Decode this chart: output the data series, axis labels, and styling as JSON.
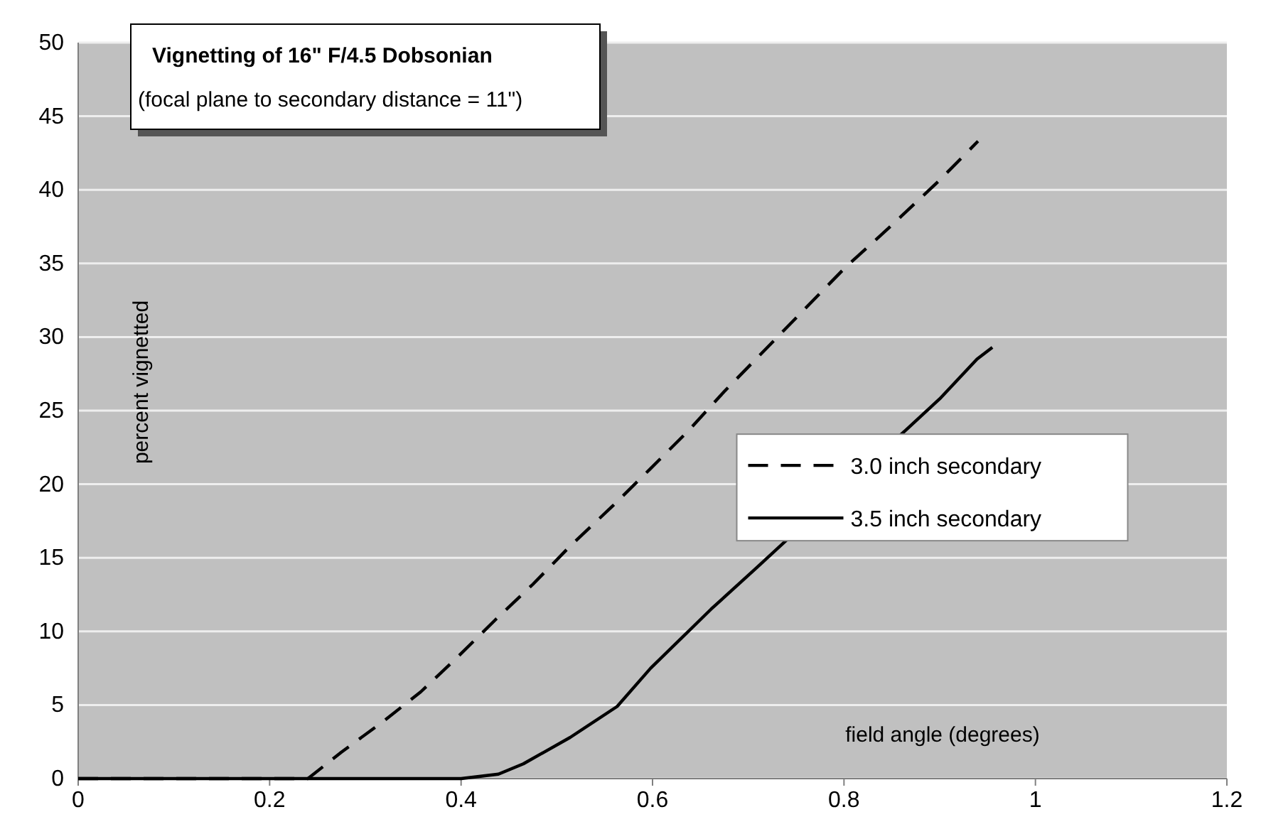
{
  "chart_data": {
    "type": "line",
    "title": "Vignetting of 16\" F/4.5 Dobsonian",
    "subtitle": "(focal plane to secondary distance = 11\")",
    "xlabel": "field angle (degrees)",
    "ylabel": "percent vignetted",
    "xlim": [
      0,
      1.2
    ],
    "xticks": [
      0,
      0.2,
      0.4,
      0.6,
      0.8,
      1,
      1.2
    ],
    "ylim": [
      0,
      50
    ],
    "yticks": [
      0,
      5,
      10,
      15,
      20,
      25,
      30,
      35,
      40,
      45,
      50
    ],
    "grid": "y",
    "legend": "right",
    "marker": "none",
    "series": [
      {
        "name": "3.0 inch secondary",
        "color": "#000000",
        "line_style": "dashed",
        "x": [
          0,
          0.2,
          0.24,
          0.275,
          0.319,
          0.358,
          0.397,
          0.436,
          0.475,
          0.514,
          0.558,
          0.597,
          0.637,
          0.675,
          0.714,
          0.753,
          0.801,
          0.85,
          0.899,
          0.94
        ],
        "values": [
          0,
          0,
          0,
          1.8,
          3.9,
          5.9,
          8.3,
          10.8,
          13.2,
          15.8,
          18.5,
          21,
          23.6,
          26.3,
          28.9,
          31.5,
          34.7,
          37.6,
          40.6,
          43.3
        ]
      },
      {
        "name": "3.5 inch secondary",
        "color": "#000000",
        "line_style": "solid",
        "x": [
          0,
          0.4,
          0.439,
          0.465,
          0.514,
          0.563,
          0.598,
          0.661,
          0.71,
          0.9,
          0.939,
          0.955
        ],
        "values": [
          0,
          0,
          0.3,
          1,
          2.8,
          4.9,
          7.5,
          11.5,
          14.4,
          25.8,
          28.5,
          29.3
        ]
      }
    ]
  }
}
